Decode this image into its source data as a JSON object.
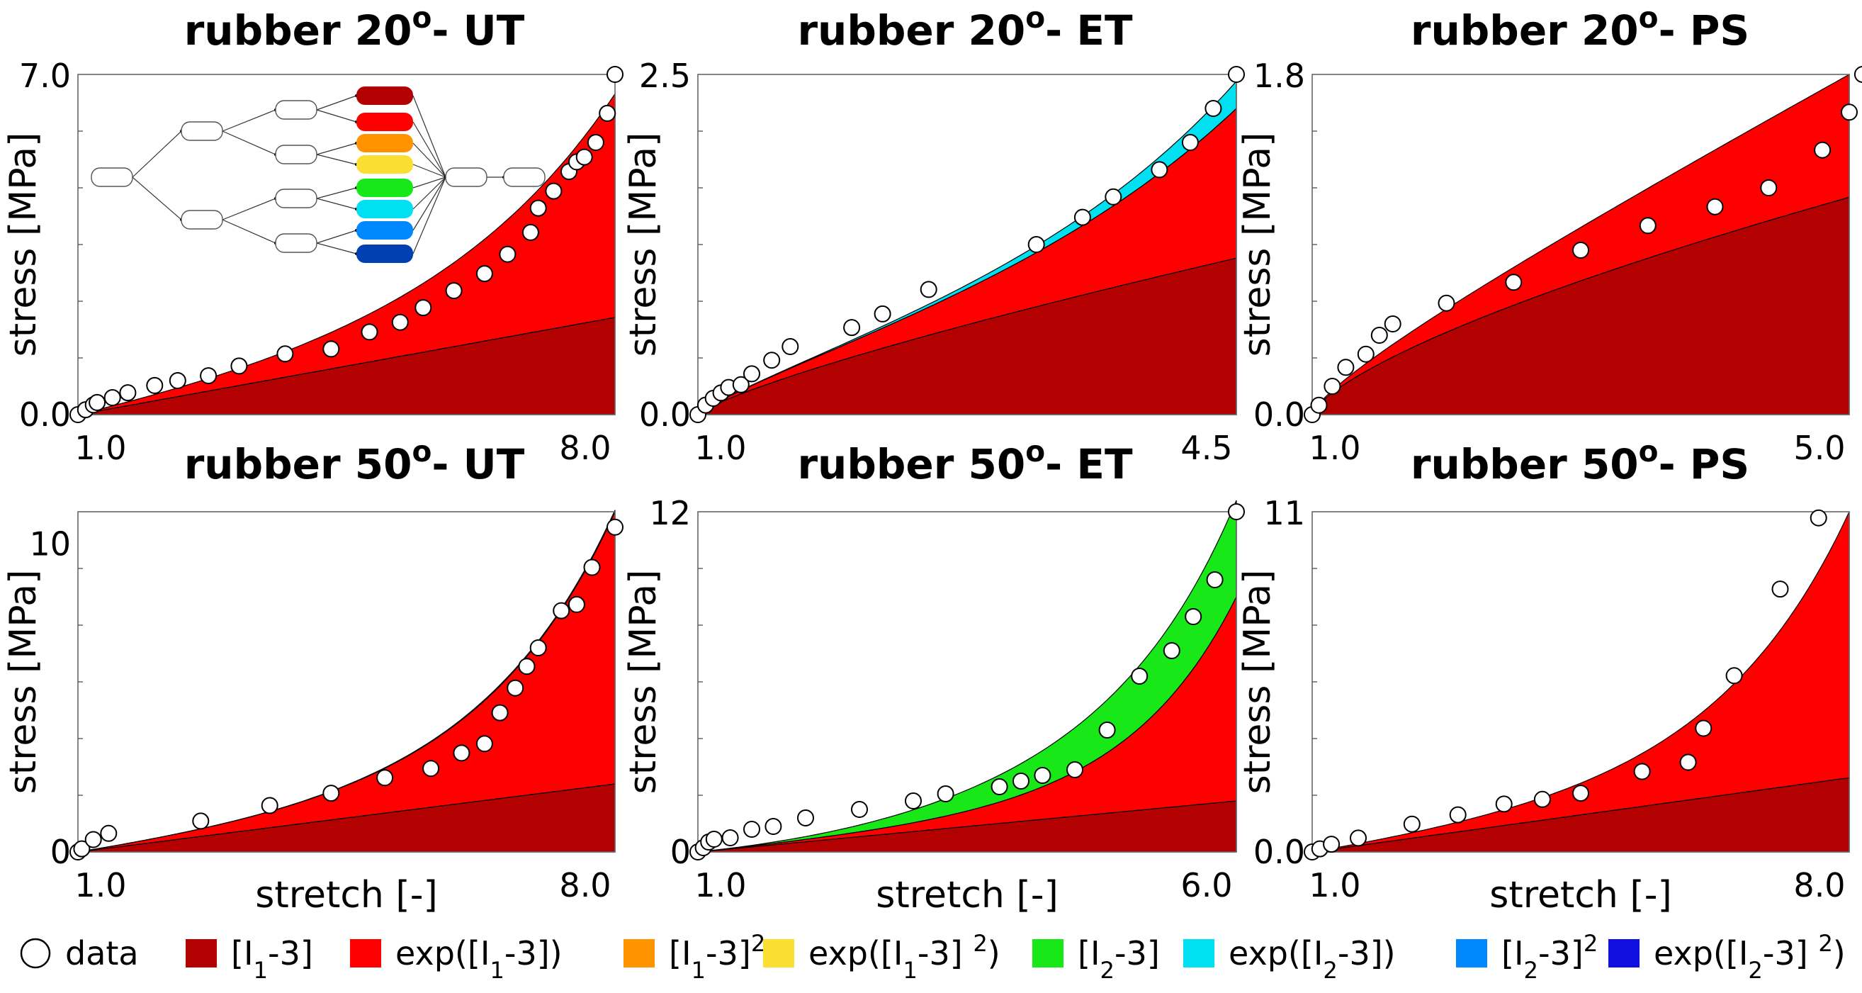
{
  "legend": [
    {
      "key": "data",
      "label": "data",
      "type": "marker"
    },
    {
      "key": "I1-3",
      "label": "[I1-3]",
      "color": "#b30000"
    },
    {
      "key": "expI1-3",
      "label": "exp([I1-3])",
      "color": "#ff0000"
    },
    {
      "key": "I1-3sq",
      "label": "[I1-3]²",
      "color": "#ff9400"
    },
    {
      "key": "expI1-3sq",
      "label": "exp([I1-3] ²)",
      "color": "#fade32"
    },
    {
      "key": "I2-3",
      "label": "[I2-3]",
      "color": "#18e818"
    },
    {
      "key": "expI2-3",
      "label": "exp([I2-3])",
      "color": "#00e0f0"
    },
    {
      "key": "I2-3sq",
      "label": "[I2-3]²",
      "color": "#0088ff"
    },
    {
      "key": "expI2-3sq",
      "label": "exp([I2-3] ²)",
      "color": "#1010e0"
    }
  ],
  "network_diagram": {
    "output_colors": [
      "#b30000",
      "#ff0000",
      "#ff9400",
      "#fade32",
      "#18e818",
      "#00e0f0",
      "#0088ff",
      "#0040b0"
    ]
  },
  "chart_data": [
    {
      "type": "area",
      "title": "rubber 20°- UT",
      "xlabel": "",
      "ylabel": "stress [MPa]",
      "xticks": [
        "1.0",
        "8.0"
      ],
      "yticks": [
        "0.0",
        "7.0"
      ],
      "xlim": [
        1.0,
        8.0
      ],
      "ylim": [
        0,
        7.0
      ],
      "series": [
        {
          "name": "[I1-3]",
          "key": "I1-3",
          "x": [
            1.0,
            8.0
          ],
          "values": [
            0,
            2.0
          ],
          "form": "lin"
        },
        {
          "name": "exp([I1-3])",
          "key": "expI1-3",
          "x": [
            1.0,
            8.0
          ],
          "values": [
            0,
            4.6
          ],
          "form": "exp",
          "k": 3.0
        }
      ],
      "data": [
        [
          1.0,
          0.0
        ],
        [
          1.1,
          0.1
        ],
        [
          1.2,
          0.2
        ],
        [
          1.25,
          0.25
        ],
        [
          1.45,
          0.35
        ],
        [
          1.65,
          0.45
        ],
        [
          2.0,
          0.6
        ],
        [
          2.3,
          0.7
        ],
        [
          2.7,
          0.8
        ],
        [
          3.1,
          1.0
        ],
        [
          3.7,
          1.25
        ],
        [
          4.3,
          1.35
        ],
        [
          4.8,
          1.7
        ],
        [
          5.2,
          1.9
        ],
        [
          5.5,
          2.2
        ],
        [
          5.9,
          2.55
        ],
        [
          6.3,
          2.9
        ],
        [
          6.6,
          3.3
        ],
        [
          6.9,
          3.75
        ],
        [
          7.0,
          4.25
        ],
        [
          7.2,
          4.6
        ],
        [
          7.4,
          5.0
        ],
        [
          7.5,
          5.2
        ],
        [
          7.6,
          5.3
        ],
        [
          7.75,
          5.6
        ],
        [
          7.9,
          6.2
        ],
        [
          8.0,
          7.0
        ]
      ]
    },
    {
      "type": "area",
      "title": "rubber 20°- ET",
      "xlabel": "",
      "ylabel": "stress [MPa]",
      "xticks": [
        "1.0",
        "4.5"
      ],
      "yticks": [
        "0.0",
        "2.5"
      ],
      "xlim": [
        1.0,
        4.5
      ],
      "ylim": [
        0,
        2.5
      ],
      "series": [
        {
          "name": "[I1-3]",
          "key": "I1-3",
          "x": [
            1.0,
            4.5
          ],
          "values": [
            0,
            1.15
          ],
          "form": "pow",
          "k": 0.8
        },
        {
          "name": "exp([I1-3])",
          "key": "expI1-3",
          "x": [
            1.0,
            4.5
          ],
          "values": [
            0,
            1.1
          ],
          "form": "exp",
          "k": 2.3
        },
        {
          "name": "exp([I2-3])",
          "key": "expI2-3",
          "x": [
            1.0,
            4.5
          ],
          "values": [
            0,
            0.2
          ],
          "form": "exp",
          "k": 3.5
        }
      ],
      "data": [
        [
          1.0,
          0.0
        ],
        [
          1.05,
          0.07
        ],
        [
          1.1,
          0.12
        ],
        [
          1.15,
          0.16
        ],
        [
          1.2,
          0.2
        ],
        [
          1.28,
          0.22
        ],
        [
          1.35,
          0.3
        ],
        [
          1.48,
          0.4
        ],
        [
          1.6,
          0.5
        ],
        [
          2.0,
          0.64
        ],
        [
          2.2,
          0.74
        ],
        [
          2.5,
          0.92
        ],
        [
          3.2,
          1.25
        ],
        [
          3.5,
          1.45
        ],
        [
          3.7,
          1.6
        ],
        [
          4.0,
          1.8
        ],
        [
          4.2,
          2.0
        ],
        [
          4.35,
          2.25
        ],
        [
          4.5,
          2.5
        ]
      ]
    },
    {
      "type": "area",
      "title": "rubber 20°- PS",
      "xlabel": "",
      "ylabel": "stress [MPa]",
      "xticks": [
        "1.0",
        "5.0"
      ],
      "yticks": [
        "0.0",
        "1.8"
      ],
      "xlim": [
        1.0,
        5.0
      ],
      "ylim": [
        0,
        1.8
      ],
      "series": [
        {
          "name": "[I1-3]",
          "key": "I1-3",
          "x": [
            1.0,
            5.0
          ],
          "values": [
            0,
            1.15
          ],
          "form": "pow",
          "k": 0.7
        },
        {
          "name": "exp([I1-3])",
          "key": "expI1-3",
          "x": [
            1.0,
            5.0
          ],
          "values": [
            0,
            0.65
          ],
          "form": "pow",
          "k": 1.2
        }
      ],
      "data": [
        [
          1.0,
          0.0
        ],
        [
          1.05,
          0.05
        ],
        [
          1.15,
          0.15
        ],
        [
          1.25,
          0.25
        ],
        [
          1.4,
          0.32
        ],
        [
          1.5,
          0.42
        ],
        [
          1.6,
          0.48
        ],
        [
          2.0,
          0.59
        ],
        [
          2.5,
          0.7
        ],
        [
          3.0,
          0.87
        ],
        [
          3.5,
          1.0
        ],
        [
          4.0,
          1.1
        ],
        [
          4.4,
          1.2
        ],
        [
          4.8,
          1.4
        ],
        [
          5.0,
          1.6
        ],
        [
          5.1,
          1.8
        ]
      ]
    },
    {
      "type": "area",
      "title": "rubber 50°- UT",
      "xlabel": "stretch [-]",
      "ylabel": "stress [MPa]",
      "xticks": [
        "1.0",
        "8.0"
      ],
      "yticks": [
        "0",
        "10"
      ],
      "xlim": [
        1.0,
        8.0
      ],
      "ylim": [
        0,
        11
      ],
      "series": [
        {
          "name": "[I1-3]",
          "key": "I1-3",
          "x": [
            1.0,
            8.0
          ],
          "values": [
            0,
            2.2
          ],
          "form": "lin"
        },
        {
          "name": "exp([I1-3])",
          "key": "expI1-3",
          "x": [
            1.0,
            8.0
          ],
          "values": [
            0,
            8.8
          ],
          "form": "exp",
          "k": 4.0
        },
        {
          "name": "[I2-3]",
          "key": "I2-3",
          "x": [
            1.0,
            8.0
          ],
          "values": [
            0,
            0.05
          ],
          "form": "pow",
          "k": 2.0
        }
      ],
      "data": [
        [
          1.0,
          0.0
        ],
        [
          1.05,
          0.1
        ],
        [
          1.2,
          0.4
        ],
        [
          1.4,
          0.6
        ],
        [
          2.6,
          1.0
        ],
        [
          3.5,
          1.5
        ],
        [
          4.3,
          1.9
        ],
        [
          5.0,
          2.4
        ],
        [
          5.6,
          2.7
        ],
        [
          6.0,
          3.2
        ],
        [
          6.3,
          3.5
        ],
        [
          6.5,
          4.5
        ],
        [
          6.7,
          5.3
        ],
        [
          6.85,
          6.0
        ],
        [
          7.0,
          6.6
        ],
        [
          7.3,
          7.8
        ],
        [
          7.5,
          8.0
        ],
        [
          7.7,
          9.2
        ],
        [
          8.0,
          10.5
        ]
      ]
    },
    {
      "type": "area",
      "title": "rubber 50°- ET",
      "xlabel": "stretch [-]",
      "ylabel": "stress [MPa]",
      "xticks": [
        "1.0",
        "6.0"
      ],
      "yticks": [
        "0",
        "12"
      ],
      "xlim": [
        1.0,
        6.0
      ],
      "ylim": [
        0,
        12
      ],
      "series": [
        {
          "name": "[I1-3]",
          "key": "I1-3",
          "x": [
            1.0,
            6.0
          ],
          "values": [
            0,
            1.8
          ],
          "form": "lin"
        },
        {
          "name": "exp([I1-3])",
          "key": "expI1-3",
          "x": [
            1.0,
            6.0
          ],
          "values": [
            0,
            7.2
          ],
          "form": "exp",
          "k": 5.0
        },
        {
          "name": "[I2-3]",
          "key": "I2-3",
          "x": [
            1.0,
            6.0
          ],
          "values": [
            0,
            3.4
          ],
          "form": "pow",
          "k": 2.2
        }
      ],
      "data": [
        [
          1.0,
          0.0
        ],
        [
          1.05,
          0.15
        ],
        [
          1.1,
          0.35
        ],
        [
          1.15,
          0.45
        ],
        [
          1.3,
          0.5
        ],
        [
          1.5,
          0.8
        ],
        [
          1.7,
          0.9
        ],
        [
          2.0,
          1.2
        ],
        [
          2.5,
          1.5
        ],
        [
          3.0,
          1.8
        ],
        [
          3.3,
          2.05
        ],
        [
          3.8,
          2.3
        ],
        [
          4.0,
          2.5
        ],
        [
          4.2,
          2.7
        ],
        [
          4.5,
          2.9
        ],
        [
          4.8,
          4.3
        ],
        [
          5.1,
          6.2
        ],
        [
          5.4,
          7.1
        ],
        [
          5.6,
          8.3
        ],
        [
          5.8,
          9.6
        ],
        [
          6.0,
          12.0
        ]
      ]
    },
    {
      "type": "area",
      "title": "rubber 50°- PS",
      "xlabel": "stretch [-]",
      "ylabel": "stress [MPa]",
      "xticks": [
        "1.0",
        "8.0"
      ],
      "yticks": [
        "0.0",
        "11"
      ],
      "xlim": [
        1.0,
        8.0
      ],
      "ylim": [
        0,
        11
      ],
      "series": [
        {
          "name": "[I1-3]",
          "key": "I1-3",
          "x": [
            1.0,
            8.0
          ],
          "values": [
            0,
            2.4
          ],
          "form": "lin"
        },
        {
          "name": "exp([I1-3])",
          "key": "expI1-3",
          "x": [
            1.0,
            8.0
          ],
          "values": [
            0,
            8.6
          ],
          "form": "exp",
          "k": 4.0
        }
      ],
      "data": [
        [
          1.0,
          0.0
        ],
        [
          1.1,
          0.1
        ],
        [
          1.25,
          0.25
        ],
        [
          1.6,
          0.45
        ],
        [
          2.3,
          0.9
        ],
        [
          2.9,
          1.2
        ],
        [
          3.5,
          1.55
        ],
        [
          4.0,
          1.7
        ],
        [
          4.5,
          1.9
        ],
        [
          5.3,
          2.6
        ],
        [
          5.9,
          2.9
        ],
        [
          6.1,
          4.0
        ],
        [
          6.5,
          5.7
        ],
        [
          7.1,
          8.5
        ],
        [
          7.6,
          10.8
        ]
      ]
    }
  ]
}
